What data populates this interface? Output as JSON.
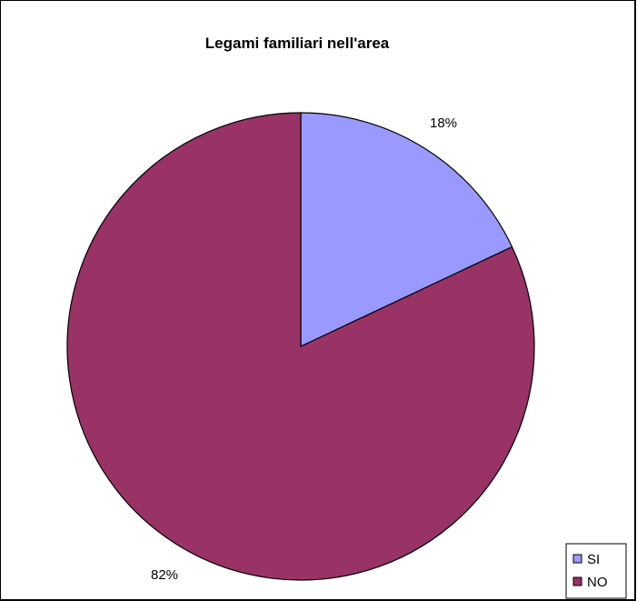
{
  "chart_data": {
    "type": "pie",
    "title": "Legami familiari nell'area",
    "categories": [
      "SI",
      "NO"
    ],
    "values": [
      18,
      82
    ],
    "labels": [
      "18%",
      "82%"
    ],
    "colors": [
      "#9999ff",
      "#993366"
    ],
    "start_angle": "12 o'clock",
    "direction": "clockwise",
    "legend_position": "bottom-right"
  }
}
